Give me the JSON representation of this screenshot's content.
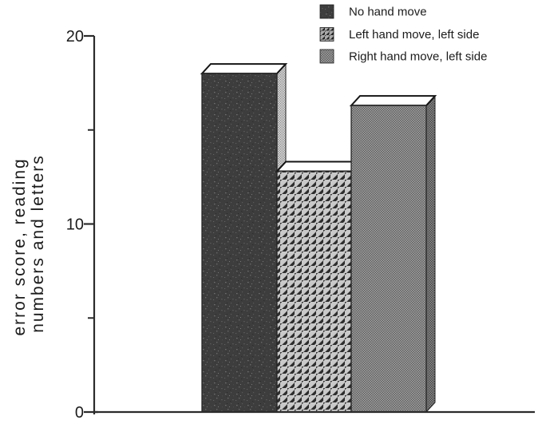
{
  "figure": {
    "background": "#ffffff",
    "axis_color": "#2b2b2b",
    "text_color": "#1b1b1b",
    "style_note": "scanned black-and-white 3D bar chart"
  },
  "chart_data": {
    "type": "bar",
    "title": "",
    "xlabel": "",
    "ylabel": "error score, reading numbers and letters",
    "ylabel_lines": [
      "error score,  reading",
      "numbers  and  letters"
    ],
    "ylim": [
      0,
      20
    ],
    "yticks_major": [
      20,
      10,
      0
    ],
    "yticks_minor": [
      15,
      5
    ],
    "grid": false,
    "legend_position": "top-right",
    "categories": [
      "No hand move",
      "Left hand move, left side",
      "Right hand move, left side"
    ],
    "series": [
      {
        "name": "error score",
        "values": [
          18.0,
          12.8,
          16.3
        ]
      }
    ],
    "bar_styles": [
      {
        "label": "No hand move",
        "pattern": "speckle-solid",
        "front_color": "#3d3d3d",
        "side_pattern": "light-dot-screen"
      },
      {
        "label": "Left hand move, left side",
        "pattern": "diagonal-hatch",
        "front_color": "#c9c9c9",
        "side_pattern": "diagonal-hatch"
      },
      {
        "label": "Right hand move, left side",
        "pattern": "dot-screen",
        "front_color": "#9e9e9e",
        "side_pattern": "dark-dot-screen"
      }
    ],
    "bar_top_faces": "white parallelograms with black outline (pseudo-3D)"
  },
  "legend": {
    "items": [
      {
        "label": "No hand move",
        "swatch": "speckle-solid"
      },
      {
        "label": "Left hand move, left side",
        "swatch": "diagonal-hatch"
      },
      {
        "label": "Right hand move, left side",
        "swatch": "dot-screen"
      }
    ]
  }
}
